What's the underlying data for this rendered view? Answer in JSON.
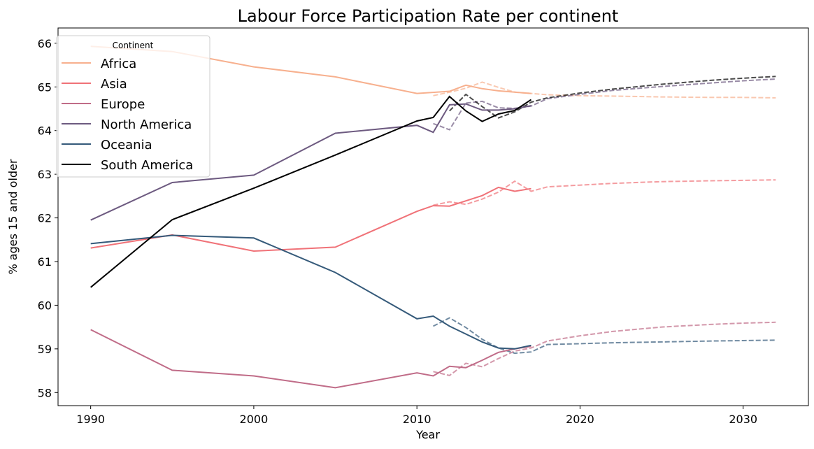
{
  "chart_data": {
    "type": "line",
    "title": "Labour Force Participation Rate per continent",
    "xlabel": "Year",
    "ylabel": "% ages 15 and older",
    "xlim": [
      1988,
      2034
    ],
    "ylim": [
      57.7,
      66.35
    ],
    "xticks": [
      1990,
      2000,
      2010,
      2020,
      2030
    ],
    "yticks": [
      58,
      59,
      60,
      61,
      62,
      63,
      64,
      65,
      66
    ],
    "legend": {
      "title": "Continent",
      "placement": "upper-left"
    },
    "series": [
      {
        "name": "Africa",
        "color": "#f7b08e",
        "actual": [
          [
            1990,
            65.93
          ],
          [
            1995,
            65.81
          ],
          [
            2000,
            65.46
          ],
          [
            2005,
            65.23
          ],
          [
            2010,
            64.85
          ],
          [
            2012,
            64.9
          ],
          [
            2013,
            65.04
          ],
          [
            2014,
            64.96
          ],
          [
            2015,
            64.91
          ],
          [
            2016,
            64.88
          ],
          [
            2017,
            64.85
          ]
        ],
        "projected": [
          [
            2011,
            64.8
          ],
          [
            2012,
            64.88
          ],
          [
            2013,
            64.97
          ],
          [
            2014,
            65.11
          ],
          [
            2015,
            64.99
          ],
          [
            2016,
            64.88
          ],
          [
            2017,
            64.85
          ],
          [
            2018,
            64.82
          ],
          [
            2020,
            64.8
          ],
          [
            2022,
            64.79
          ],
          [
            2025,
            64.77
          ],
          [
            2028,
            64.76
          ],
          [
            2030,
            64.76
          ],
          [
            2032,
            64.75
          ]
        ]
      },
      {
        "name": "Asia",
        "color": "#f07278",
        "actual": [
          [
            1990,
            61.31
          ],
          [
            1995,
            61.61
          ],
          [
            2000,
            61.24
          ],
          [
            2005,
            61.33
          ],
          [
            2010,
            62.15
          ],
          [
            2011,
            62.28
          ],
          [
            2012,
            62.27
          ],
          [
            2013,
            62.39
          ],
          [
            2014,
            62.51
          ],
          [
            2015,
            62.7
          ],
          [
            2016,
            62.61
          ],
          [
            2017,
            62.67
          ]
        ],
        "projected": [
          [
            2011,
            62.29
          ],
          [
            2012,
            62.37
          ],
          [
            2013,
            62.31
          ],
          [
            2014,
            62.43
          ],
          [
            2015,
            62.59
          ],
          [
            2016,
            62.84
          ],
          [
            2017,
            62.61
          ],
          [
            2018,
            62.71
          ],
          [
            2020,
            62.75
          ],
          [
            2022,
            62.79
          ],
          [
            2025,
            62.83
          ],
          [
            2028,
            62.85
          ],
          [
            2030,
            62.86
          ],
          [
            2032,
            62.87
          ]
        ]
      },
      {
        "name": "Europe",
        "color": "#c06c88",
        "actual": [
          [
            1990,
            59.44
          ],
          [
            1995,
            58.51
          ],
          [
            2000,
            58.38
          ],
          [
            2005,
            58.11
          ],
          [
            2010,
            58.45
          ],
          [
            2011,
            58.38
          ],
          [
            2012,
            58.6
          ],
          [
            2013,
            58.57
          ],
          [
            2014,
            58.74
          ],
          [
            2015,
            58.92
          ],
          [
            2016,
            59.0
          ],
          [
            2017,
            59.06
          ]
        ],
        "projected": [
          [
            2011,
            58.48
          ],
          [
            2012,
            58.39
          ],
          [
            2013,
            58.67
          ],
          [
            2014,
            58.59
          ],
          [
            2015,
            58.78
          ],
          [
            2016,
            58.95
          ],
          [
            2017,
            59.02
          ],
          [
            2018,
            59.18
          ],
          [
            2020,
            59.3
          ],
          [
            2022,
            59.4
          ],
          [
            2025,
            59.5
          ],
          [
            2028,
            59.56
          ],
          [
            2030,
            59.59
          ],
          [
            2032,
            59.61
          ]
        ]
      },
      {
        "name": "North America",
        "color": "#6d5a80",
        "actual": [
          [
            1990,
            61.95
          ],
          [
            1995,
            62.81
          ],
          [
            2000,
            62.98
          ],
          [
            2005,
            63.94
          ],
          [
            2010,
            64.12
          ],
          [
            2011,
            63.96
          ],
          [
            2012,
            64.59
          ],
          [
            2013,
            64.61
          ],
          [
            2014,
            64.47
          ],
          [
            2015,
            64.47
          ],
          [
            2016,
            64.5
          ],
          [
            2017,
            64.57
          ]
        ],
        "projected": [
          [
            2011,
            64.16
          ],
          [
            2012,
            64.02
          ],
          [
            2013,
            64.63
          ],
          [
            2014,
            64.67
          ],
          [
            2015,
            64.52
          ],
          [
            2016,
            64.51
          ],
          [
            2017,
            64.56
          ],
          [
            2018,
            64.73
          ],
          [
            2020,
            64.83
          ],
          [
            2022,
            64.92
          ],
          [
            2025,
            65.01
          ],
          [
            2028,
            65.09
          ],
          [
            2030,
            65.14
          ],
          [
            2032,
            65.18
          ]
        ]
      },
      {
        "name": "Oceania",
        "color": "#355a7a",
        "actual": [
          [
            1990,
            61.41
          ],
          [
            1995,
            61.6
          ],
          [
            2000,
            61.54
          ],
          [
            2005,
            60.75
          ],
          [
            2010,
            59.69
          ],
          [
            2011,
            59.75
          ],
          [
            2012,
            59.52
          ],
          [
            2013,
            59.34
          ],
          [
            2014,
            59.16
          ],
          [
            2015,
            59.02
          ],
          [
            2016,
            59.0
          ],
          [
            2017,
            59.08
          ]
        ],
        "projected": [
          [
            2011,
            59.52
          ],
          [
            2012,
            59.71
          ],
          [
            2013,
            59.49
          ],
          [
            2014,
            59.22
          ],
          [
            2015,
            59.02
          ],
          [
            2016,
            58.9
          ],
          [
            2017,
            58.93
          ],
          [
            2018,
            59.1
          ],
          [
            2020,
            59.12
          ],
          [
            2022,
            59.14
          ],
          [
            2025,
            59.16
          ],
          [
            2028,
            59.18
          ],
          [
            2030,
            59.19
          ],
          [
            2032,
            59.2
          ]
        ]
      },
      {
        "name": "South America",
        "color": "#000000",
        "actual": [
          [
            1990,
            60.41
          ],
          [
            1995,
            61.96
          ],
          [
            2000,
            62.68
          ],
          [
            2005,
            63.44
          ],
          [
            2010,
            64.22
          ],
          [
            2011,
            64.3
          ],
          [
            2012,
            64.78
          ],
          [
            2013,
            64.45
          ],
          [
            2014,
            64.21
          ],
          [
            2015,
            64.38
          ],
          [
            2016,
            64.46
          ],
          [
            2017,
            64.71
          ]
        ],
        "projected": [
          [
            2012,
            64.45
          ],
          [
            2013,
            64.83
          ],
          [
            2014,
            64.55
          ],
          [
            2015,
            64.29
          ],
          [
            2016,
            64.43
          ],
          [
            2017,
            64.65
          ],
          [
            2018,
            64.75
          ],
          [
            2020,
            64.86
          ],
          [
            2022,
            64.95
          ],
          [
            2025,
            65.06
          ],
          [
            2028,
            65.15
          ],
          [
            2030,
            65.2
          ],
          [
            2032,
            65.24
          ]
        ]
      }
    ]
  }
}
